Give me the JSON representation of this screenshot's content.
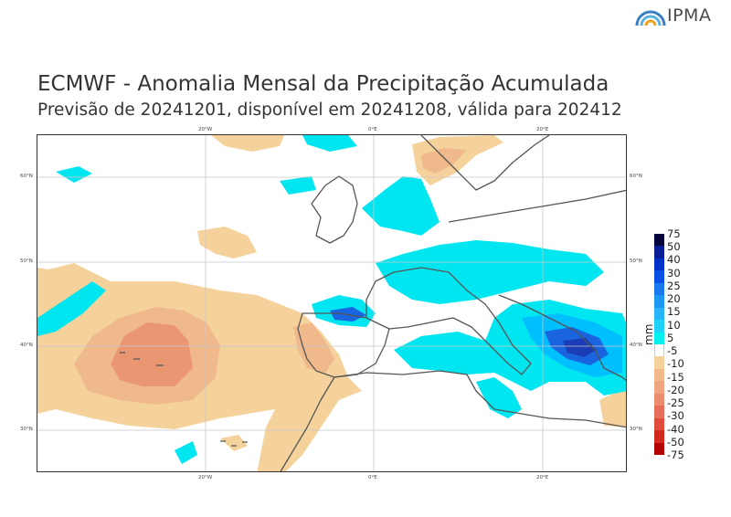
{
  "brand": {
    "logo_text": "IPMA",
    "logo_icon": "ipma-rainbow-icon"
  },
  "header": {
    "title": "ECMWF - Anomalia Mensal da Precipitação Acumulada",
    "subtitle": "Previsão de 20241201, disponível em 20241208, válida para 202412"
  },
  "map": {
    "lon_labels": [
      "20°W",
      "0°E",
      "20°E"
    ],
    "lat_labels": [
      "60°N",
      "50°N",
      "40°N",
      "30°N"
    ],
    "colors": {
      "land_outline": "#555555",
      "grid": "#c8c8c8",
      "pos_light": "#00e6f0",
      "pos_mid": "#00bfff",
      "pos_dark": "#1a64e0",
      "pos_darker": "#1a3cb4",
      "neg_light": "#f5d29b",
      "neg_mid": "#f0b98c",
      "neg_strong": "#eb9673"
    }
  },
  "colorbar": {
    "unit": "mm",
    "ticks": [
      "75",
      "50",
      "40",
      "30",
      "25",
      "20",
      "15",
      "10",
      "5",
      "-5",
      "-10",
      "-15",
      "-20",
      "-25",
      "-30",
      "-40",
      "-50",
      "-75"
    ],
    "colors": [
      "#05053c",
      "#0a1e96",
      "#0032c8",
      "#0a50e6",
      "#1978f0",
      "#1e96f5",
      "#28b4fa",
      "#1ed2fa",
      "#00f0f0",
      "#ffffff",
      "#f5d29b",
      "#f0b98c",
      "#f0a582",
      "#eb8c6e",
      "#e66e5a",
      "#e14b3c",
      "#d2281e",
      "#b40000"
    ]
  }
}
